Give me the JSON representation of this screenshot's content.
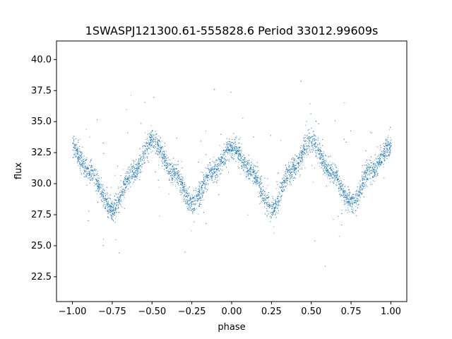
{
  "chart_data": {
    "type": "scatter",
    "title": "1SWASPJ121300.61-555828.6 Period 33012.99609s",
    "xlabel": "phase",
    "ylabel": "flux",
    "xlim": [
      -1.1,
      1.1
    ],
    "ylim": [
      20.5,
      41.5
    ],
    "xticks": [
      -1.0,
      -0.75,
      -0.5,
      -0.25,
      0.0,
      0.25,
      0.5,
      0.75,
      1.0
    ],
    "xtick_labels": [
      "−1.00",
      "−0.75",
      "−0.50",
      "−0.25",
      "0.00",
      "0.25",
      "0.50",
      "0.75",
      "1.00"
    ],
    "yticks": [
      22.5,
      25.0,
      27.5,
      30.0,
      32.5,
      35.0,
      37.5,
      40.0
    ],
    "ytick_labels": [
      "22.5",
      "25.0",
      "27.5",
      "30.0",
      "32.5",
      "35.0",
      "37.5",
      "40.0"
    ],
    "grid": false,
    "marker_color": "#1f77b4",
    "series": [
      {
        "x": [
          -1.0,
          -0.9,
          -0.75,
          -0.62,
          -0.5,
          -0.37,
          -0.25,
          -0.12,
          0.0,
          0.12,
          0.25,
          0.37,
          0.5,
          0.62,
          0.75,
          0.87,
          1.0
        ],
        "values": [
          33.0,
          31.0,
          28.0,
          31.0,
          33.5,
          31.0,
          28.5,
          31.0,
          33.0,
          31.0,
          28.0,
          31.0,
          33.5,
          31.0,
          28.5,
          31.0,
          33.0
        ]
      }
    ]
  }
}
